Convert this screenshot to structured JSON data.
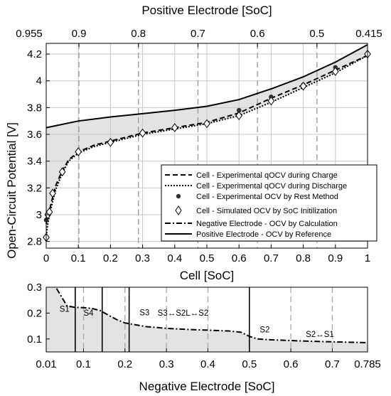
{
  "chart_data": [
    {
      "type": "line",
      "ylabel": "Open-Circuit Potential [V]",
      "xlabel": "Cell [SoC]",
      "xlim": [
        0,
        1
      ],
      "ylim": [
        2.75,
        4.28
      ],
      "x_ticks": [
        "0",
        "0.1",
        "0.2",
        "0.3",
        "0.4",
        "0.5",
        "0.6",
        "0.7",
        "0.8",
        "0.9",
        "1"
      ],
      "y_ticks": [
        "2.8",
        "3",
        "3.2",
        "3.4",
        "3.6",
        "3.8",
        "4",
        "4.2"
      ],
      "top_axis": {
        "label": "Positive Electrode [SoC]",
        "ticks": [
          "0.955",
          "0.9",
          "0.8",
          "0.7",
          "0.6",
          "0.5",
          "0.415"
        ]
      },
      "grid": true,
      "legend_position": "lower-right",
      "series": [
        {
          "name": "Cell - Experimental qOCV during Charge",
          "style": "dashed",
          "x": [
            0.0,
            0.005,
            0.01,
            0.02,
            0.03,
            0.05,
            0.07,
            0.1,
            0.15,
            0.2,
            0.3,
            0.4,
            0.5,
            0.6,
            0.7,
            0.8,
            0.9,
            1.0
          ],
          "y": [
            2.93,
            2.99,
            3.03,
            3.13,
            3.22,
            3.33,
            3.41,
            3.47,
            3.52,
            3.55,
            3.61,
            3.65,
            3.69,
            3.76,
            3.87,
            3.97,
            4.08,
            4.19
          ]
        },
        {
          "name": "Cell - Experimental qOCV during Discharge",
          "style": "dotted",
          "x": [
            0.0,
            0.005,
            0.01,
            0.02,
            0.03,
            0.05,
            0.07,
            0.1,
            0.15,
            0.2,
            0.3,
            0.4,
            0.5,
            0.6,
            0.7,
            0.8,
            0.9,
            1.0
          ],
          "y": [
            2.84,
            2.93,
            2.99,
            3.1,
            3.19,
            3.31,
            3.4,
            3.46,
            3.51,
            3.54,
            3.6,
            3.64,
            3.68,
            3.74,
            3.84,
            3.95,
            4.06,
            4.19
          ]
        },
        {
          "name": "Cell - Experimental OCV by Rest Method",
          "style": "markers-dot",
          "x": [
            0.0,
            0.6,
            0.7,
            0.8,
            0.9
          ],
          "y": [
            2.96,
            3.78,
            3.88,
            3.97,
            4.1
          ]
        },
        {
          "name": "Cell - Simulated OCV by SoC Initilization",
          "style": "markers-diamond",
          "x": [
            0.0,
            0.005,
            0.01,
            0.02,
            0.05,
            0.1,
            0.2,
            0.3,
            0.4,
            0.5,
            0.6,
            0.7,
            0.8,
            0.9,
            1.0
          ],
          "y": [
            2.83,
            3.0,
            3.02,
            3.16,
            3.32,
            3.47,
            3.54,
            3.61,
            3.65,
            3.68,
            3.74,
            3.85,
            3.96,
            4.07,
            4.2
          ]
        },
        {
          "name": "Negative Electrode - OCV by Calculation",
          "style": "dashdot",
          "axis": "bottom-panel"
        },
        {
          "name": "Positive Electrode - OCV by Reference",
          "style": "solid",
          "x": [
            0.0,
            0.1,
            0.2,
            0.3,
            0.4,
            0.5,
            0.6,
            0.7,
            0.8,
            0.9,
            1.0
          ],
          "y": [
            3.65,
            3.7,
            3.73,
            3.755,
            3.78,
            3.81,
            3.86,
            3.94,
            4.03,
            4.14,
            4.27
          ]
        }
      ]
    },
    {
      "type": "line",
      "xlabel": "Negative Electrode [SoC]",
      "xlim": [
        0.01,
        0.785
      ],
      "ylim": [
        0.05,
        0.3
      ],
      "x_ticks": [
        "0.01",
        "0.1",
        "0.2",
        "0.3",
        "0.4",
        "0.5",
        "0.6",
        "0.7",
        "0.785"
      ],
      "y_ticks": [
        "0.1",
        "0.2",
        "0.3"
      ],
      "grid": "vertical-dashed",
      "series": [
        {
          "name": "Negative Electrode - OCV by Calculation",
          "style": "dashdot",
          "x": [
            0.035,
            0.06,
            0.08,
            0.1,
            0.12,
            0.14,
            0.16,
            0.18,
            0.2,
            0.25,
            0.3,
            0.35,
            0.4,
            0.45,
            0.48,
            0.5,
            0.52,
            0.55,
            0.6,
            0.65,
            0.7,
            0.75,
            0.785
          ],
          "y": [
            0.295,
            0.228,
            0.222,
            0.221,
            0.218,
            0.21,
            0.192,
            0.175,
            0.162,
            0.148,
            0.141,
            0.137,
            0.134,
            0.131,
            0.126,
            0.11,
            0.1,
            0.097,
            0.094,
            0.091,
            0.089,
            0.087,
            0.086
          ]
        }
      ],
      "stage_boundaries": [
        0.08,
        0.145,
        0.21,
        0.5
      ],
      "stage_labels": [
        "S1'",
        "S4",
        "S3",
        "S3↔S2L↔S2",
        "S2",
        "S2↔S1"
      ]
    }
  ]
}
